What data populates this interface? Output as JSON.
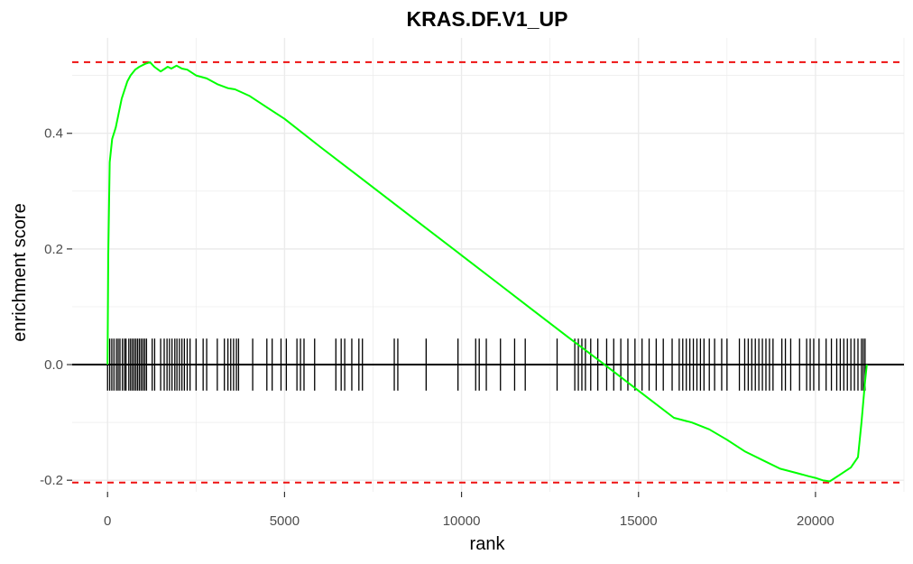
{
  "chart_data": {
    "type": "line",
    "title": "KRAS.DF.V1_UP",
    "xlabel": "rank",
    "ylabel": "enrichment score",
    "xlim": [
      -1000,
      22500
    ],
    "ylim": [
      -0.22,
      0.565
    ],
    "xticks": [
      0,
      5000,
      10000,
      15000,
      20000
    ],
    "xtick_labels": [
      "0",
      "5000",
      "10000",
      "15000",
      "20000"
    ],
    "yticks": [
      -0.2,
      0.0,
      0.2,
      0.4
    ],
    "ytick_labels": [
      "-0.2",
      "0.0",
      "0.2",
      "0.4"
    ],
    "grid": true,
    "legend": "none",
    "colors": {
      "curve": "#00ff00",
      "threshold": "#ee1111",
      "ticks": "#000000",
      "zero_line": "#000000",
      "grid": "#ebebeb"
    },
    "max_es": 0.523,
    "min_es": -0.204,
    "series": [
      {
        "x": [
          0,
          20,
          60,
          130,
          230,
          400,
          560,
          650,
          780,
          900,
          1060,
          1200,
          1320,
          1500,
          1700,
          1800,
          1950,
          2100,
          2250,
          2500,
          2800,
          3100,
          3400,
          3600,
          4000,
          4500,
          5000,
          6000,
          7000,
          8000,
          9000,
          10000,
          11000,
          12000,
          13000,
          14000,
          15000,
          16000,
          16500,
          17000,
          17500,
          18000,
          18500,
          19000,
          19500,
          19800,
          20000,
          20200,
          20400,
          20700,
          21000,
          21200,
          21300,
          21400,
          21450
        ],
        "y": [
          0.0,
          0.19,
          0.35,
          0.39,
          0.41,
          0.46,
          0.49,
          0.5,
          0.51,
          0.515,
          0.52,
          0.523,
          0.515,
          0.507,
          0.515,
          0.512,
          0.517,
          0.512,
          0.51,
          0.5,
          0.495,
          0.485,
          0.478,
          0.476,
          0.465,
          0.445,
          0.425,
          0.377,
          0.33,
          0.283,
          0.236,
          0.189,
          0.142,
          0.095,
          0.048,
          0.002,
          -0.045,
          -0.092,
          -0.1,
          -0.112,
          -0.13,
          -0.15,
          -0.165,
          -0.18,
          -0.188,
          -0.193,
          -0.196,
          -0.2,
          -0.202,
          -0.19,
          -0.178,
          -0.16,
          -0.1,
          -0.03,
          0.0
        ]
      }
    ],
    "hit_ranks": [
      0,
      60,
      120,
      180,
      250,
      300,
      350,
      420,
      480,
      520,
      600,
      650,
      700,
      750,
      800,
      850,
      900,
      950,
      1000,
      1050,
      1100,
      1260,
      1330,
      1500,
      1600,
      1680,
      1750,
      1820,
      1900,
      1960,
      2030,
      2100,
      2170,
      2250,
      2330,
      2500,
      2700,
      2800,
      3100,
      3300,
      3400,
      3480,
      3560,
      3640,
      3700,
      4100,
      4500,
      4650,
      4900,
      5050,
      5350,
      5450,
      5550,
      5850,
      6450,
      6600,
      6700,
      6900,
      7100,
      7200,
      8100,
      8200,
      9000,
      9900,
      10400,
      10500,
      10700,
      11100,
      11500,
      11800,
      12700,
      13200,
      13300,
      13400,
      13500,
      13650,
      13850,
      14100,
      14300,
      14500,
      14700,
      14900,
      15100,
      15300,
      15500,
      15700,
      15950,
      16150,
      16250,
      16350,
      16450,
      16550,
      16650,
      16750,
      16850,
      17000,
      17150,
      17350,
      17500,
      17850,
      18000,
      18100,
      18200,
      18300,
      18400,
      18500,
      18600,
      18700,
      18800,
      19050,
      19150,
      19300,
      19550,
      19750,
      19850,
      19950,
      20100,
      20300,
      20450,
      20600,
      20700,
      20800,
      20900,
      21000,
      21100,
      21200,
      21300,
      21350,
      21400
    ]
  }
}
